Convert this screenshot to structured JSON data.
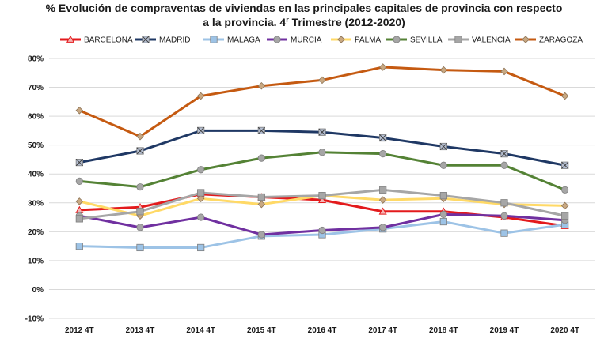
{
  "chart_data": {
    "type": "line",
    "title_line1": "% Evolución de compraventas de viviendas en las principales capitales de provincia con respecto",
    "title_line2_pre": "a la provincia.  4",
    "title_line2_sup": "r",
    "title_line2_post": " Trimestre (2012-2020)",
    "categories": [
      "2012 4T",
      "2013 4T",
      "2014 4T",
      "2015 4T",
      "2016 4T",
      "2017 4T",
      "2018 4T",
      "2019 4T",
      "2020 4T"
    ],
    "ylim": [
      -10,
      80
    ],
    "yticks": [
      -10,
      0,
      10,
      20,
      30,
      40,
      50,
      60,
      70,
      80
    ],
    "ytick_labels": [
      "-10%",
      "0%",
      "10%",
      "20%",
      "30%",
      "40%",
      "50%",
      "60%",
      "70%",
      "80%"
    ],
    "grid": true,
    "legend_position": "top",
    "series": [
      {
        "name": "BARCELONA",
        "color": "#e31a1c",
        "marker": "triangle",
        "values": [
          27.5,
          28.5,
          33,
          32,
          31,
          27,
          27,
          25,
          22
        ]
      },
      {
        "name": "MADRID",
        "color": "#1f3864",
        "marker": "x-square",
        "values": [
          44,
          48,
          55,
          55,
          54.5,
          52.5,
          49.5,
          47,
          43
        ]
      },
      {
        "name": "MÁLAGA",
        "color": "#9dc3e6",
        "marker": "square",
        "values": [
          15,
          14.5,
          14.5,
          18.5,
          19,
          21,
          23.5,
          19.5,
          22.5
        ]
      },
      {
        "name": "MURCIA",
        "color": "#7030a0",
        "marker": "circle",
        "values": [
          25.5,
          21.5,
          25,
          19,
          20.5,
          21.5,
          26,
          25.5,
          24
        ]
      },
      {
        "name": "PALMA",
        "color": "#ffd966",
        "marker": "diamond",
        "values": [
          30.5,
          25.5,
          31.5,
          29.5,
          32.5,
          31,
          31.5,
          29.5,
          29
        ]
      },
      {
        "name": "SEVILLA",
        "color": "#548235",
        "marker": "circle",
        "values": [
          37.5,
          35.5,
          41.5,
          45.5,
          47.5,
          47,
          43,
          43,
          34.5
        ]
      },
      {
        "name": "VALENCIA",
        "color": "#a6a6a6",
        "marker": "square",
        "values": [
          24.5,
          27,
          33.5,
          32,
          32.5,
          34.5,
          32.5,
          30,
          25.5
        ]
      },
      {
        "name": "ZARAGOZA",
        "color": "#c55a11",
        "marker": "diamond",
        "values": [
          62,
          53,
          67,
          70.5,
          72.5,
          77,
          76,
          75.5,
          67
        ]
      }
    ]
  }
}
